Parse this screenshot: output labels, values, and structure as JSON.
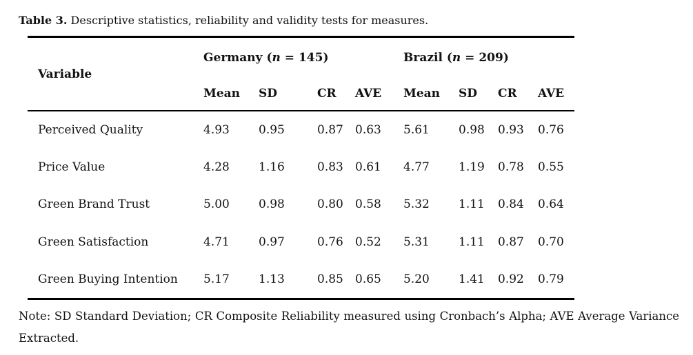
{
  "caption": {
    "label": "Table 3.",
    "text": " Descriptive statistics, reliability and validity tests for measures."
  },
  "table": {
    "variable_header": "Variable",
    "groups": [
      {
        "prefix": "Germany (",
        "n": "n",
        "suffix": " = 145)"
      },
      {
        "prefix": "Brazil (",
        "n": "n",
        "suffix": " = 209)"
      }
    ],
    "subheaders": [
      "Mean",
      "SD",
      "CR",
      "AVE",
      "Mean",
      "SD",
      "CR",
      "AVE"
    ],
    "rows": [
      {
        "variable": "Perceived Quality",
        "values": [
          "4.93",
          "0.95",
          "0.87",
          "0.63",
          "5.61",
          "0.98",
          "0.93",
          "0.76"
        ]
      },
      {
        "variable": "Price Value",
        "values": [
          "4.28",
          "1.16",
          "0.83",
          "0.61",
          "4.77",
          "1.19",
          "0.78",
          "0.55"
        ]
      },
      {
        "variable": "Green Brand Trust",
        "values": [
          "5.00",
          "0.98",
          "0.80",
          "0.58",
          "5.32",
          "1.11",
          "0.84",
          "0.64"
        ]
      },
      {
        "variable": "Green Satisfaction",
        "values": [
          "4.71",
          "0.97",
          "0.76",
          "0.52",
          "5.31",
          "1.11",
          "0.87",
          "0.70"
        ]
      },
      {
        "variable": "Green Buying Intention",
        "values": [
          "5.17",
          "1.13",
          "0.85",
          "0.65",
          "5.20",
          "1.41",
          "0.92",
          "0.79"
        ]
      }
    ]
  },
  "note": {
    "text": "Note: SD Standard Deviation; CR Composite Reliability measured using Cronbach’s Alpha; AVE Average Variance Extracted."
  }
}
